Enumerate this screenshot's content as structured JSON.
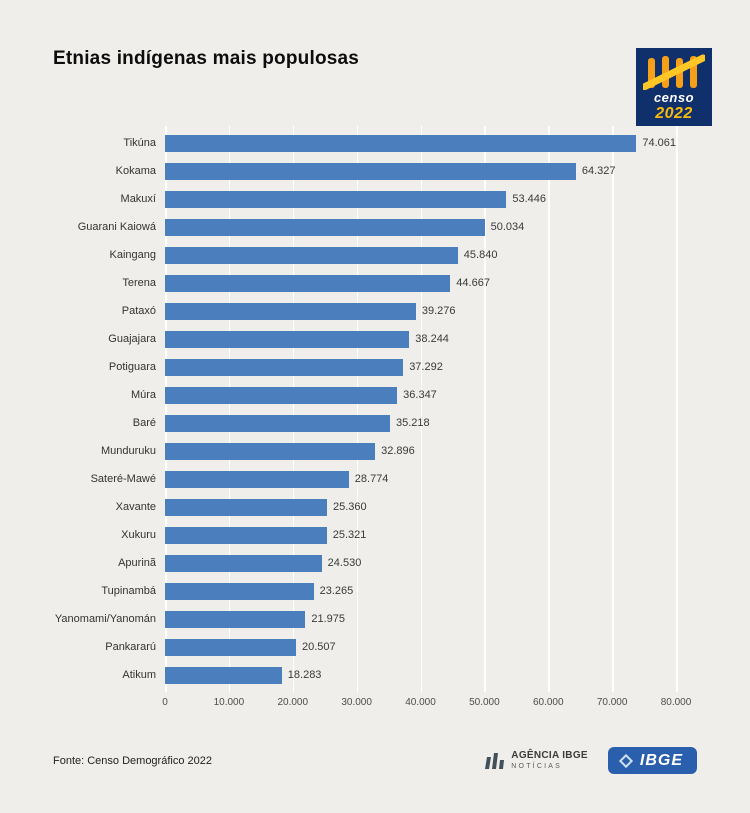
{
  "page": {
    "title": "Etnias indígenas mais populosas"
  },
  "censo_logo": {
    "line1": "censo",
    "line2": "2022"
  },
  "chart_data": {
    "type": "bar",
    "orientation": "horizontal",
    "title": "Etnias indígenas mais populosas",
    "xlabel": "",
    "ylabel": "",
    "xlim": [
      0,
      80000
    ],
    "grid": true,
    "bar_color": "#4a7ebd",
    "categories": [
      "Tikúna",
      "Kokama",
      "Makuxí",
      "Guarani Kaiowá",
      "Kaingang",
      "Terena",
      "Pataxó",
      "Guajajara",
      "Potiguara",
      "Múra",
      "Baré",
      "Munduruku",
      "Sateré-Mawé",
      "Xavante",
      "Xukuru",
      "Apurinã",
      "Tupinambá",
      "Yanomami/Yanomán",
      "Pankararú",
      "Atikum"
    ],
    "values": [
      74061,
      64327,
      53446,
      50034,
      45840,
      44667,
      39276,
      38244,
      37292,
      36347,
      35218,
      32896,
      28774,
      25360,
      25321,
      24530,
      23265,
      21975,
      20507,
      18283
    ],
    "value_labels": [
      "74.061",
      "64.327",
      "53.446",
      "50.034",
      "45.840",
      "44.667",
      "39.276",
      "38.244",
      "37.292",
      "36.347",
      "35.218",
      "32.896",
      "28.774",
      "25.360",
      "25.321",
      "24.530",
      "23.265",
      "21.975",
      "20.507",
      "18.283"
    ],
    "x_ticks": [
      "0",
      "10.000",
      "20.000",
      "30.000",
      "40.000",
      "50.000",
      "60.000",
      "70.000",
      "80.000"
    ]
  },
  "footer": {
    "source": "Fonte: Censo Demográfico 2022",
    "agencia_line1": "AGÊNCIA IBGE",
    "agencia_line2": "NOTÍCIAS",
    "ibge_label": "IBGE"
  }
}
